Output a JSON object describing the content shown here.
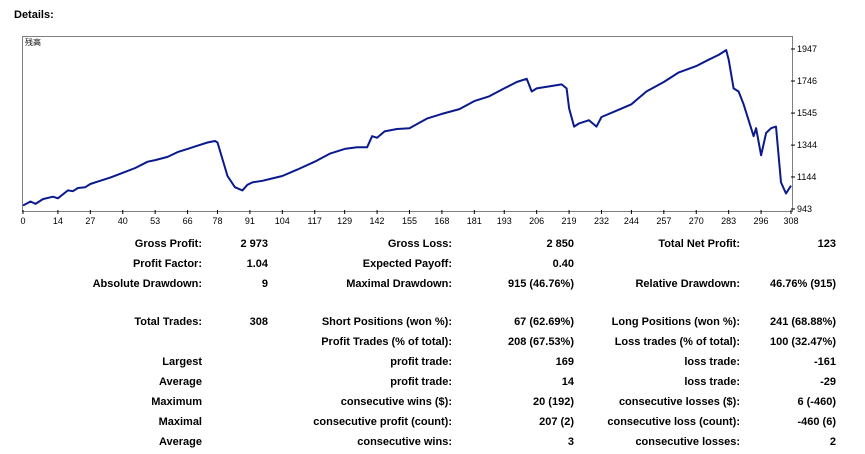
{
  "header": {
    "title": "Details:"
  },
  "chart_label": "残高",
  "chart_data": {
    "type": "line",
    "title": "",
    "xlabel": "",
    "ylabel": "",
    "color": "#0a1a8c",
    "x_ticks": [
      0,
      14,
      27,
      40,
      53,
      66,
      78,
      91,
      104,
      117,
      129,
      142,
      155,
      168,
      181,
      193,
      206,
      219,
      232,
      244,
      257,
      270,
      283,
      296,
      308
    ],
    "y_ticks": [
      943,
      1144,
      1344,
      1545,
      1746,
      1947
    ],
    "xlim": [
      0,
      308
    ],
    "ylim": [
      943,
      1947
    ],
    "x": [
      0,
      3,
      5,
      8,
      12,
      14,
      18,
      20,
      22,
      25,
      27,
      30,
      35,
      40,
      45,
      50,
      53,
      58,
      62,
      66,
      70,
      74,
      77,
      78,
      82,
      85,
      88,
      90,
      92,
      96,
      100,
      104,
      110,
      117,
      123,
      129,
      134,
      138,
      140,
      142,
      145,
      150,
      155,
      162,
      168,
      175,
      181,
      187,
      193,
      198,
      202,
      204,
      206,
      212,
      216,
      218,
      219,
      221,
      223,
      227,
      230,
      232,
      238,
      244,
      250,
      257,
      263,
      270,
      275,
      279,
      282,
      283,
      285,
      287,
      289,
      291,
      293,
      294,
      296,
      298,
      300,
      302,
      304,
      306,
      308
    ],
    "y": [
      965,
      990,
      975,
      1005,
      1020,
      1010,
      1060,
      1055,
      1075,
      1080,
      1100,
      1115,
      1140,
      1170,
      1200,
      1240,
      1250,
      1270,
      1300,
      1320,
      1340,
      1360,
      1370,
      1360,
      1150,
      1080,
      1060,
      1095,
      1110,
      1120,
      1135,
      1150,
      1190,
      1240,
      1290,
      1320,
      1330,
      1330,
      1400,
      1390,
      1430,
      1445,
      1450,
      1510,
      1540,
      1570,
      1620,
      1650,
      1700,
      1740,
      1760,
      1680,
      1700,
      1715,
      1725,
      1700,
      1575,
      1460,
      1480,
      1500,
      1460,
      1520,
      1560,
      1600,
      1680,
      1740,
      1800,
      1840,
      1880,
      1910,
      1940,
      1880,
      1700,
      1680,
      1600,
      1500,
      1400,
      1450,
      1280,
      1420,
      1450,
      1460,
      1110,
      1040,
      1090
    ]
  },
  "stats": {
    "r1": {
      "l1": "Gross Profit:",
      "v1": "2 973",
      "l2": "Gross Loss:",
      "v2": "2 850",
      "l3": "Total Net Profit:",
      "v3": "123"
    },
    "r2": {
      "l1": "Profit Factor:",
      "v1": "1.04",
      "l2": "Expected Payoff:",
      "v2": "0.40",
      "l3": "",
      "v3": ""
    },
    "r3": {
      "l1": "Absolute Drawdown:",
      "v1": "9",
      "l2": "Maximal Drawdown:",
      "v2": "915 (46.76%)",
      "l3": "Relative Drawdown:",
      "v3": "46.76% (915)"
    },
    "r4": {
      "l1": "Total Trades:",
      "v1": "308",
      "l2": "Short Positions (won %):",
      "v2": "67 (62.69%)",
      "l3": "Long Positions (won %):",
      "v3": "241 (68.88%)"
    },
    "r5": {
      "l1": "",
      "v1": "",
      "l2": "Profit Trades (% of total):",
      "v2": "208 (67.53%)",
      "l3": "Loss trades (% of total):",
      "v3": "100 (32.47%)"
    },
    "r6": {
      "l1": "Largest",
      "v1": "",
      "l2": "profit trade:",
      "v2": "169",
      "l3": "loss trade:",
      "v3": "-161"
    },
    "r7": {
      "l1": "Average",
      "v1": "",
      "l2": "profit trade:",
      "v2": "14",
      "l3": "loss trade:",
      "v3": "-29"
    },
    "r8": {
      "l1": "Maximum",
      "v1": "",
      "l2": "consecutive wins ($):",
      "v2": "20 (192)",
      "l3": "consecutive losses ($):",
      "v3": "6 (-460)"
    },
    "r9": {
      "l1": "Maximal",
      "v1": "",
      "l2": "consecutive profit (count):",
      "v2": "207 (2)",
      "l3": "consecutive loss (count):",
      "v3": "-460 (6)"
    },
    "r10": {
      "l1": "Average",
      "v1": "",
      "l2": "consecutive wins:",
      "v2": "3",
      "l3": "consecutive losses:",
      "v3": "2"
    }
  }
}
